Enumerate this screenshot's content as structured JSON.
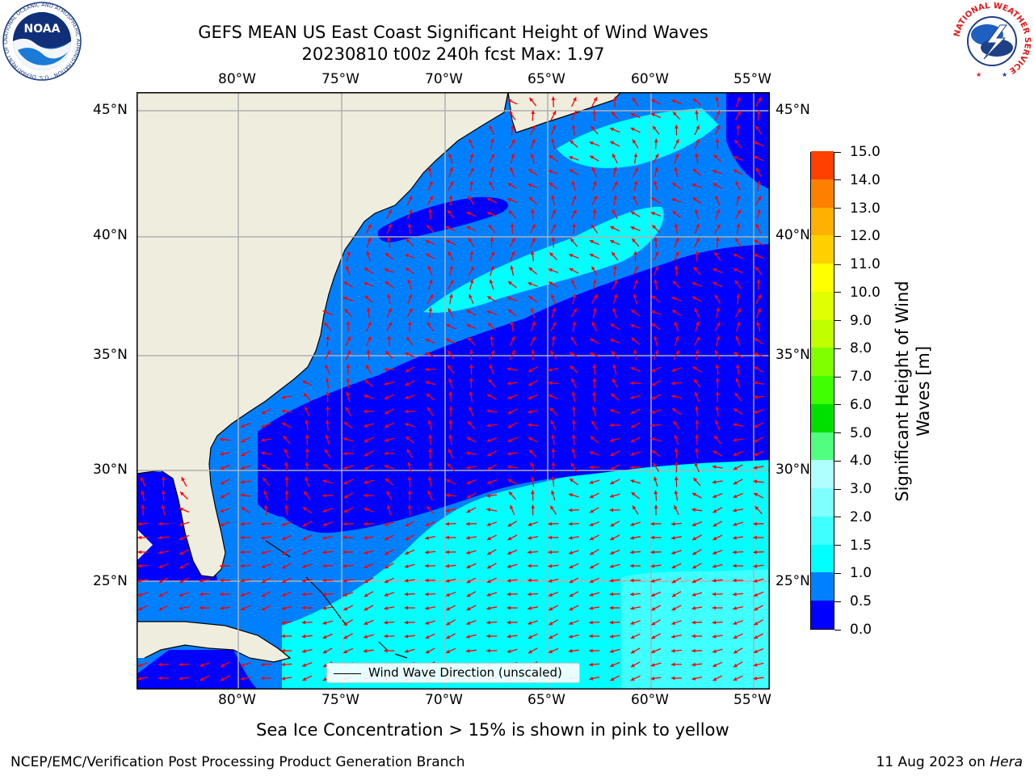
{
  "header": {
    "title_line1": "GEFS MEAN US East Coast Significant Height of Wind Waves",
    "title_line2": "20230810 t00z 240h fcst   Max: 1.97"
  },
  "map": {
    "lon_labels": [
      "80°W",
      "75°W",
      "70°W",
      "65°W",
      "60°W",
      "55°W"
    ],
    "lat_labels": [
      "45°N",
      "40°N",
      "35°N",
      "30°N",
      "25°N"
    ],
    "legend_label": "Wind Wave Direction (unscaled)",
    "arrow_color": "#ff0000",
    "land_color": "#efedde",
    "grid_color": "#b0b0b0"
  },
  "colorbar": {
    "title_line1": "Significant Height of Wind",
    "title_line2": "Waves [m]",
    "levels": [
      "0.0",
      "0.5",
      "1.0",
      "1.5",
      "2.0",
      "3.0",
      "4.0",
      "5.0",
      "6.0",
      "7.0",
      "8.0",
      "9.0",
      "10.0",
      "11.0",
      "12.0",
      "13.0",
      "14.0",
      "15.0"
    ],
    "colors": [
      "#0000ff",
      "#0080ff",
      "#00ffff",
      "#40ffff",
      "#80ffff",
      "#b0ffff",
      "#50ff80",
      "#00e000",
      "#40ff00",
      "#80ff00",
      "#c0ff00",
      "#e0ff00",
      "#ffff00",
      "#ffd000",
      "#ffb000",
      "#ff8000",
      "#ff4000",
      "#ff0000"
    ]
  },
  "footer": {
    "note": "Sea Ice Concentration > 15% is shown in pink to yellow",
    "credit": "NCEP/EMC/Verification Post Processing Product Generation Branch",
    "date_prefix": "11 Aug 2023 on ",
    "date_machine": "Hera"
  },
  "logos": {
    "noaa": "NOAA",
    "noaa_ring": "NATIONAL OCEANIC AND ATMOSPHERIC ADMINISTRATION · U.S. DEPARTMENT OF COMMERCE",
    "nws_ring": "NATIONAL WEATHER SERVICE"
  }
}
